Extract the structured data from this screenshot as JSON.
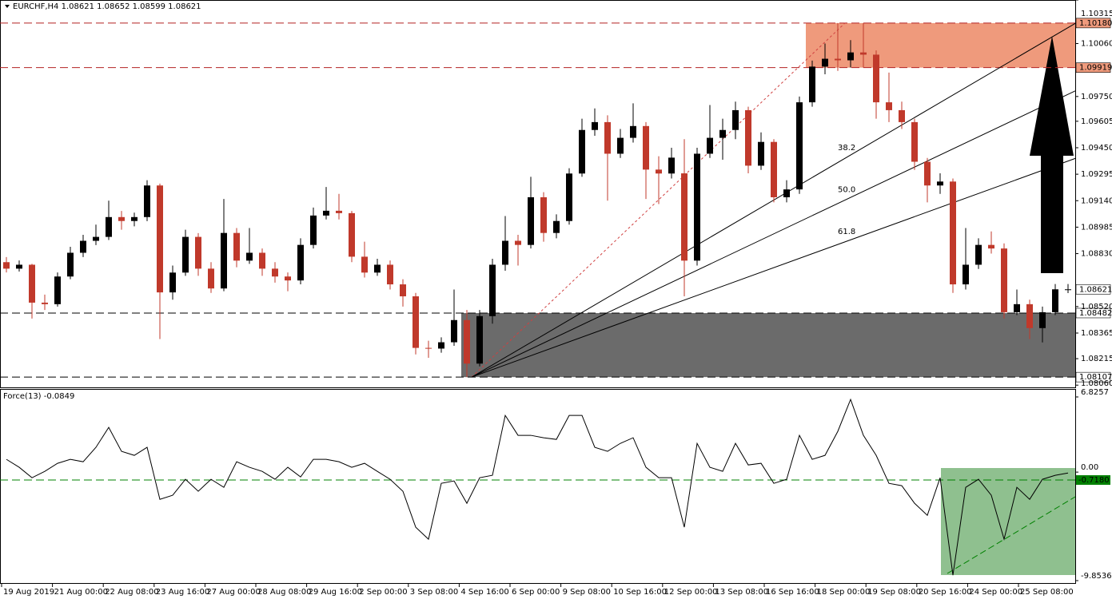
{
  "chart_data": [
    {
      "type": "candlestick",
      "title": "EURCHF,H4  1.08621 1.08652 1.08599 1.08621",
      "ylim": [
        1.08047,
        1.10315
      ],
      "yticks": [
        {
          "value": 1.0806,
          "label": "1.08060"
        },
        {
          "value": 1.08215,
          "label": "1.08215"
        },
        1.08365,
        {
          "value": 1.0852,
          "label": "1.08520"
        },
        {
          "value": 1.0883,
          "label": "1.08830"
        },
        1.08985,
        {
          "value": 1.0914,
          "label": "1.09140"
        },
        1.09295,
        {
          "value": 1.0945,
          "label": "1.09450"
        },
        1.09605,
        {
          "value": 1.0975,
          "label": "1.09750"
        },
        {
          "value": 1.1006,
          "label": "1.10060"
        },
        1.10315
      ],
      "up_color": "#000000",
      "down_color": "#c0392b",
      "ohlc": [
        [
          1.0878,
          1.0881,
          1.0872,
          1.08742
        ],
        [
          1.08742,
          1.0879,
          1.08725,
          1.08765
        ],
        [
          1.08765,
          1.0877,
          1.0845,
          1.08543
        ],
        [
          1.08543,
          1.0859,
          1.085,
          1.08534
        ],
        [
          1.08534,
          1.0872,
          1.0852,
          1.08696
        ],
        [
          1.08696,
          1.0887,
          1.0868,
          1.08835
        ],
        [
          1.08835,
          1.0894,
          1.0881,
          1.08905
        ],
        [
          1.08905,
          1.09,
          1.0888,
          1.08928
        ],
        [
          1.08928,
          1.0914,
          1.0891,
          1.09044
        ],
        [
          1.09044,
          1.0908,
          1.0897,
          1.09021
        ],
        [
          1.09021,
          1.0907,
          1.0899,
          1.09044
        ],
        [
          1.09044,
          1.0926,
          1.0902,
          1.09229
        ],
        [
          1.09229,
          1.0924,
          1.0833,
          1.08603
        ],
        [
          1.08603,
          1.0876,
          1.0856,
          1.08719
        ],
        [
          1.08719,
          1.0897,
          1.087,
          1.08928
        ],
        [
          1.08928,
          1.0895,
          1.087,
          1.08742
        ],
        [
          1.08742,
          1.0878,
          1.086,
          1.08626
        ],
        [
          1.08626,
          1.0915,
          1.0861,
          1.08951
        ],
        [
          1.08951,
          1.0898,
          1.0875,
          1.08789
        ],
        [
          1.08789,
          1.0898,
          1.0877,
          1.08835
        ],
        [
          1.08835,
          1.0886,
          1.087,
          1.08742
        ],
        [
          1.08742,
          1.0878,
          1.0866,
          1.08696
        ],
        [
          1.08696,
          1.0872,
          1.0861,
          1.08673
        ],
        [
          1.08673,
          1.0892,
          1.0865,
          1.08881
        ],
        [
          1.08881,
          1.091,
          1.0886,
          1.09053
        ],
        [
          1.09053,
          1.0922,
          1.0903,
          1.09081
        ],
        [
          1.09081,
          1.0918,
          1.0903,
          1.09067
        ],
        [
          1.09067,
          1.0908,
          1.0878,
          1.08812
        ],
        [
          1.08812,
          1.089,
          1.0869,
          1.08719
        ],
        [
          1.08719,
          1.088,
          1.087,
          1.08765
        ],
        [
          1.08765,
          1.0879,
          1.0862,
          1.0865
        ],
        [
          1.0865,
          1.0868,
          1.0852,
          1.0858
        ],
        [
          1.0858,
          1.086,
          1.0824,
          1.08278
        ],
        [
          1.08278,
          1.0832,
          1.0822,
          1.08274
        ],
        [
          1.08274,
          1.0834,
          1.0825,
          1.08311
        ],
        [
          1.08311,
          1.0862,
          1.0829,
          1.08441
        ],
        [
          1.08441,
          1.085,
          1.08107,
          1.08186
        ],
        [
          1.08186,
          1.085,
          1.0817,
          1.08464
        ],
        [
          1.08464,
          1.088,
          1.0842,
          1.08765
        ],
        [
          1.08765,
          1.0905,
          1.0873,
          1.08905
        ],
        [
          1.08905,
          1.0894,
          1.0876,
          1.08881
        ],
        [
          1.08881,
          1.0928,
          1.0886,
          1.0916
        ],
        [
          1.0916,
          1.0919,
          1.089,
          1.08951
        ],
        [
          1.08951,
          1.0906,
          1.0892,
          1.09021
        ],
        [
          1.09021,
          1.0933,
          1.09,
          1.09299
        ],
        [
          1.09299,
          1.0962,
          1.0928,
          1.09554
        ],
        [
          1.09554,
          1.0968,
          1.0952,
          1.096
        ],
        [
          1.096,
          1.0964,
          1.0914,
          1.09415
        ],
        [
          1.09415,
          1.0956,
          1.0939,
          1.09508
        ],
        [
          1.09508,
          1.0971,
          1.0948,
          1.09577
        ],
        [
          1.09577,
          1.096,
          1.0915,
          1.09322
        ],
        [
          1.09322,
          1.094,
          1.0912,
          1.09299
        ],
        [
          1.09299,
          1.0945,
          1.0927,
          1.09392
        ],
        [
          1.093,
          1.095,
          1.0858,
          1.08789
        ],
        [
          1.08789,
          1.0945,
          1.0876,
          1.09415
        ],
        [
          1.09415,
          1.097,
          1.0939,
          1.09508
        ],
        [
          1.09508,
          1.0962,
          1.0938,
          1.09554
        ],
        [
          1.09554,
          1.0972,
          1.095,
          1.0967
        ],
        [
          1.0967,
          1.0969,
          1.093,
          1.09345
        ],
        [
          1.09345,
          1.0954,
          1.0932,
          1.09484
        ],
        [
          1.09484,
          1.095,
          1.0913,
          1.0916
        ],
        [
          1.0916,
          1.0926,
          1.0913,
          1.09206
        ],
        [
          1.09206,
          1.0975,
          1.0918,
          1.09716
        ],
        [
          1.09716,
          1.0996,
          1.0969,
          1.09925
        ],
        [
          1.09925,
          1.1006,
          1.0988,
          1.09971
        ],
        [
          1.09971,
          1.1018,
          1.099,
          1.09962
        ],
        [
          1.09962,
          1.1008,
          1.0992,
          1.10008
        ],
        [
          1.10008,
          1.1018,
          1.09919,
          1.09995
        ],
        [
          1.09995,
          1.1002,
          1.0962,
          1.09716
        ],
        [
          1.09716,
          1.0989,
          1.096,
          1.0967
        ],
        [
          1.0967,
          1.0972,
          1.0956,
          1.096
        ],
        [
          1.096,
          1.0962,
          1.0932,
          1.09368
        ],
        [
          1.09368,
          1.0939,
          1.0913,
          1.09229
        ],
        [
          1.09229,
          1.093,
          1.0918,
          1.09252
        ],
        [
          1.09252,
          1.0927,
          1.086,
          1.0865
        ],
        [
          1.0865,
          1.0898,
          1.0862,
          1.08765
        ],
        [
          1.08765,
          1.0892,
          1.0874,
          1.08881
        ],
        [
          1.08881,
          1.0896,
          1.0883,
          1.0886
        ],
        [
          1.0886,
          1.0889,
          1.0845,
          1.08487
        ],
        [
          1.08487,
          1.0862,
          1.0847,
          1.08534
        ],
        [
          1.08534,
          1.0856,
          1.0833,
          1.08394
        ],
        [
          1.08394,
          1.0852,
          1.0831,
          1.08487
        ],
        [
          1.08487,
          1.08652,
          1.0847,
          1.08621
        ],
        [
          1.08621,
          1.08652,
          1.08599,
          1.08621
        ]
      ],
      "zones": [
        {
          "color": "#ef9a7c",
          "line_color": "#b22222",
          "bounds": [
            {
              "value": 1.1018,
              "label": "1.10180"
            },
            {
              "value": 1.09919,
              "label": "1.09919"
            }
          ]
        },
        {
          "color": "#6b6b6b",
          "line_color": "#000000",
          "bounds": [
            {
              "value": 1.08482,
              "label": "1.08482"
            },
            {
              "value": 1.08107,
              "label": "1.08107"
            }
          ]
        }
      ],
      "price_label": {
        "value": 1.08621,
        "label": "1.08621"
      },
      "fib_fan": {
        "levels": [
          38.2,
          50,
          61.8
        ],
        "value_labels": [
          "38.2",
          "50.0",
          "61.8"
        ]
      }
    },
    {
      "type": "line",
      "title": "Force(13) -0.0849",
      "color": "#000000",
      "ylim": [
        -9.8536,
        6.8257
      ],
      "yticks": [
        -9.8536,
        {
          "value": 0,
          "label": "0.00"
        },
        6.8257
      ],
      "level": {
        "value": -0.718,
        "label": "-0.7180",
        "color": "#008000"
      },
      "values": [
        1.16,
        0.44,
        -0.51,
        0.07,
        0.8,
        1.16,
        0.94,
        2.25,
        4.06,
        1.89,
        1.52,
        2.25,
        -2.47,
        -2.1,
        -0.65,
        -1.74,
        -0.65,
        -1.38,
        0.94,
        0.44,
        0.07,
        -0.65,
        0.44,
        -0.44,
        1.16,
        1.16,
        0.94,
        0.44,
        0.8,
        0.07,
        -0.65,
        -1.74,
        -5,
        -6.09,
        -1.02,
        -0.8,
        -2.83,
        -0.51,
        -0.29,
        5.15,
        3.34,
        3.34,
        3.12,
        2.97,
        5.15,
        5.15,
        2.25,
        1.89,
        2.61,
        3.12,
        0.44,
        -0.51,
        -0.51,
        -5,
        2.61,
        0.44,
        0.07,
        2.61,
        0.65,
        0.8,
        -1.02,
        -0.65,
        3.34,
        1.16,
        1.52,
        3.7,
        6.6,
        3.34,
        1.52,
        -1.02,
        -1.23,
        -2.83,
        -3.92,
        -0.51,
        -9.36,
        -1.38,
        -0.65,
        -2.1,
        -6.09,
        -1.38,
        -2.47,
        -0.65,
        -0.29,
        -0.0849
      ],
      "x_labels": [
        "19 Aug 2019",
        "21 Aug 00:00",
        "22 Aug 08:00",
        "23 Aug 16:00",
        "27 Aug 00:00",
        "28 Aug 08:00",
        "29 Aug 16:00",
        "2 Sep 00:00",
        "3 Sep 08:00",
        "4 Sep 16:00",
        "6 Sep 00:00",
        "9 Sep 08:00",
        "10 Sep 16:00",
        "12 Sep 00:00",
        "13 Sep 08:00",
        "16 Sep 16:00",
        "18 Sep 00:00",
        "19 Sep 08:00",
        "20 Sep 16:00",
        "24 Sep 00:00",
        "25 Sep 08:00"
      ]
    }
  ]
}
